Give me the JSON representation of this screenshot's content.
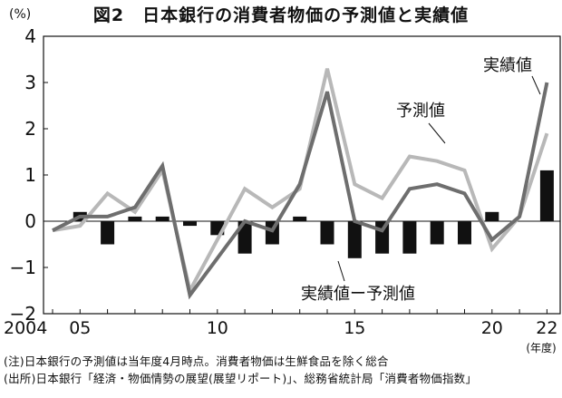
{
  "title": "図2　日本銀行の消費者物価の予測値と実績値",
  "unit_label": "(%)",
  "notes": {
    "note": "(注)日本銀行の予測値は当年度4月時点。消費者物価は生鮮食品を除く総合",
    "source": "(出所)日本銀行「経済・物価情勢の展望(展望リポート)」、総務省統計局「消費者物価指数」"
  },
  "chart_data": {
    "type": "bar+line",
    "title": "図2　日本銀行の消費者物価の予測値と実績値",
    "ylabel": "(%)",
    "xlabel": "(年度)",
    "ylim": [
      -2,
      4
    ],
    "y_ticks": [
      -2,
      -1,
      0,
      1,
      2,
      3,
      4
    ],
    "y_tick_labels": [
      "−2",
      "−1",
      "0",
      "1",
      "2",
      "3",
      "4"
    ],
    "x": [
      2004,
      2005,
      2006,
      2007,
      2008,
      2009,
      2010,
      2011,
      2012,
      2013,
      2014,
      2015,
      2016,
      2017,
      2018,
      2019,
      2020,
      2021,
      2022
    ],
    "x_tick_labels": [
      {
        "x": 2004,
        "label": "2004"
      },
      {
        "x": 2005,
        "label": "05"
      },
      {
        "x": 2010,
        "label": "10"
      },
      {
        "x": 2015,
        "label": "15"
      },
      {
        "x": 2020,
        "label": "20"
      },
      {
        "x": 2022,
        "label": "22"
      }
    ],
    "grid": false,
    "series": [
      {
        "name": "実績値",
        "type": "line",
        "color": "#6e6e6e",
        "values": [
          -0.2,
          0.1,
          0.1,
          0.3,
          1.2,
          -1.6,
          -0.8,
          0.0,
          -0.2,
          0.8,
          2.8,
          0.0,
          -0.2,
          0.7,
          0.8,
          0.6,
          -0.4,
          0.1,
          3.0
        ]
      },
      {
        "name": "予測値",
        "type": "line",
        "color": "#b8b8b8",
        "values": [
          -0.2,
          -0.1,
          0.6,
          0.2,
          1.1,
          -1.5,
          -0.4,
          0.7,
          0.3,
          0.7,
          3.3,
          0.8,
          0.5,
          1.4,
          1.3,
          1.1,
          -0.6,
          0.1,
          1.9
        ]
      },
      {
        "name": "実績値ー予測値",
        "type": "bar",
        "color": "#111111",
        "values": [
          0.0,
          0.2,
          -0.5,
          0.1,
          0.1,
          -0.1,
          -0.3,
          -0.7,
          -0.5,
          0.1,
          -0.5,
          -0.8,
          -0.7,
          -0.7,
          -0.5,
          -0.5,
          0.2,
          0.0,
          1.1
        ]
      }
    ]
  }
}
